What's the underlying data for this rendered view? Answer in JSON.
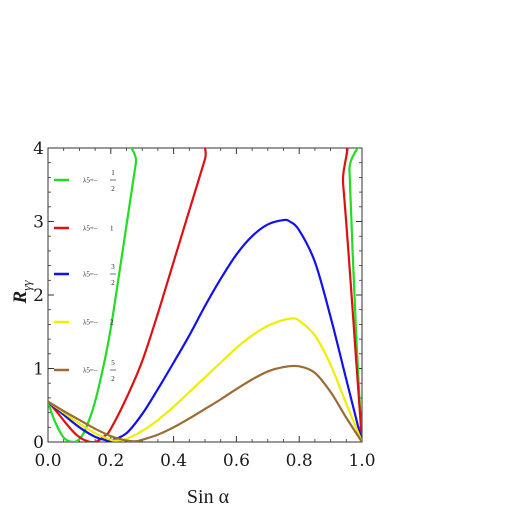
{
  "chart_data": {
    "type": "line",
    "xlabel": "Sin α",
    "ylabel": "R",
    "ylabel_sub": "γγ",
    "xlim": [
      0,
      1
    ],
    "ylim": [
      0,
      4
    ],
    "x_ticks": [
      "0.0",
      "0.2",
      "0.4",
      "0.6",
      "0.8",
      "1.0"
    ],
    "y_ticks": [
      "0",
      "1",
      "2",
      "3",
      "4"
    ],
    "grid": false,
    "legend_position": "left",
    "series": [
      {
        "name": "λ5=−1/2",
        "label_prefix": "λ5=−",
        "frac_num": "1",
        "frac_den": "2",
        "color": "#22dd22",
        "x": [
          0.0,
          0.02,
          0.05,
          0.08,
          0.1,
          0.12,
          0.15,
          0.18,
          0.2,
          0.22,
          0.25,
          0.28,
          0.3,
          0.95,
          0.96,
          0.97,
          0.98,
          0.99,
          1.0
        ],
        "y": [
          0.55,
          0.3,
          0.06,
          0.0,
          0.04,
          0.18,
          0.55,
          1.1,
          1.55,
          2.1,
          2.95,
          3.8,
          4.3,
          4.3,
          3.7,
          2.6,
          1.6,
          0.75,
          0.0
        ]
      },
      {
        "name": "λ5=−1",
        "label_prefix": "λ5=−",
        "frac_num": "",
        "frac_den": "",
        "label_plain": "1",
        "color": "#dd1111",
        "x": [
          0.0,
          0.03,
          0.06,
          0.09,
          0.12,
          0.15,
          0.18,
          0.2,
          0.25,
          0.3,
          0.35,
          0.4,
          0.45,
          0.5,
          0.53,
          0.92,
          0.94,
          0.96,
          0.98,
          1.0
        ],
        "y": [
          0.55,
          0.4,
          0.24,
          0.1,
          0.02,
          0.0,
          0.08,
          0.18,
          0.6,
          1.1,
          1.75,
          2.45,
          3.15,
          3.85,
          4.3,
          4.3,
          3.5,
          2.4,
          1.2,
          0.0
        ]
      },
      {
        "name": "λ5=−3/2",
        "label_prefix": "λ5=−",
        "frac_num": "3",
        "frac_den": "2",
        "color": "#1111ee",
        "x": [
          0.0,
          0.05,
          0.1,
          0.15,
          0.18,
          0.2,
          0.25,
          0.3,
          0.35,
          0.4,
          0.45,
          0.5,
          0.55,
          0.6,
          0.65,
          0.7,
          0.75,
          0.77,
          0.8,
          0.85,
          0.9,
          0.95,
          1.0
        ],
        "y": [
          0.55,
          0.37,
          0.2,
          0.07,
          0.03,
          0.02,
          0.12,
          0.38,
          0.72,
          1.08,
          1.45,
          1.85,
          2.22,
          2.55,
          2.8,
          2.96,
          3.02,
          3.0,
          2.88,
          2.45,
          1.7,
          0.85,
          0.0
        ]
      },
      {
        "name": "λ5=−2",
        "label_prefix": "λ5=−",
        "frac_num": "",
        "frac_den": "",
        "label_plain": "2",
        "color": "#f0ee00",
        "x": [
          0.0,
          0.05,
          0.1,
          0.15,
          0.2,
          0.22,
          0.25,
          0.3,
          0.35,
          0.4,
          0.45,
          0.5,
          0.55,
          0.6,
          0.65,
          0.7,
          0.75,
          0.78,
          0.8,
          0.85,
          0.9,
          0.95,
          1.0
        ],
        "y": [
          0.55,
          0.4,
          0.25,
          0.12,
          0.03,
          0.02,
          0.04,
          0.15,
          0.3,
          0.48,
          0.68,
          0.88,
          1.08,
          1.28,
          1.45,
          1.58,
          1.66,
          1.68,
          1.65,
          1.45,
          1.05,
          0.52,
          0.0
        ]
      },
      {
        "name": "λ5=−5/2",
        "label_prefix": "λ5=−",
        "frac_num": "5",
        "frac_den": "2",
        "color": "#9b6b35",
        "x": [
          0.0,
          0.05,
          0.1,
          0.15,
          0.2,
          0.25,
          0.28,
          0.3,
          0.35,
          0.4,
          0.45,
          0.5,
          0.55,
          0.6,
          0.65,
          0.7,
          0.75,
          0.8,
          0.85,
          0.9,
          0.95,
          1.0
        ],
        "y": [
          0.55,
          0.42,
          0.3,
          0.18,
          0.08,
          0.02,
          0.01,
          0.03,
          0.1,
          0.2,
          0.32,
          0.45,
          0.58,
          0.72,
          0.85,
          0.96,
          1.02,
          1.03,
          0.94,
          0.68,
          0.33,
          0.0
        ]
      }
    ]
  }
}
